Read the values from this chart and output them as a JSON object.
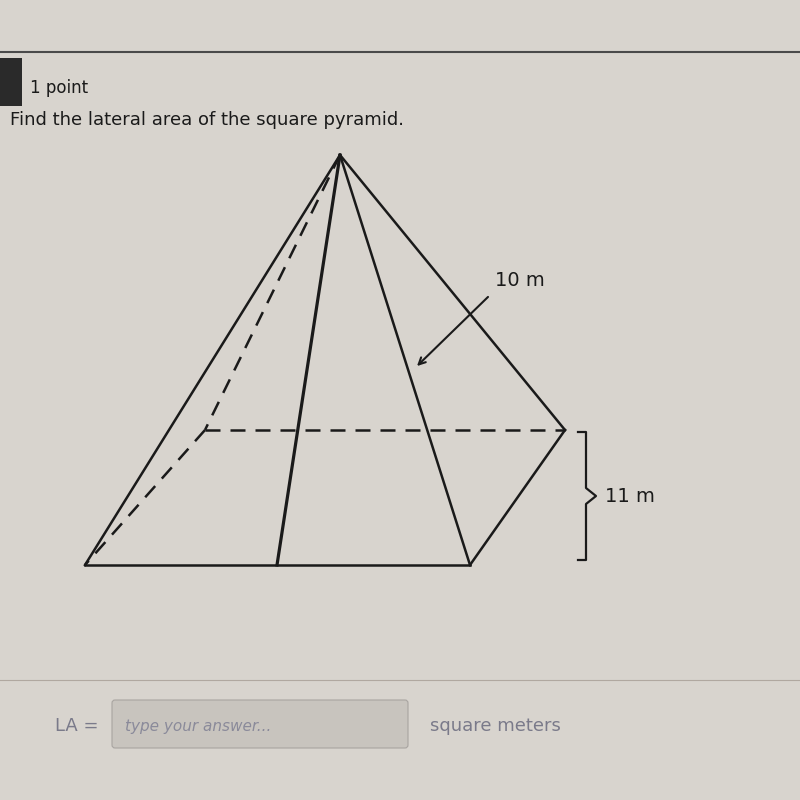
{
  "bg_color": "#d8d4ce",
  "top_bar_color": "#3a3a3a",
  "separator_color": "#5a5a5a",
  "point_text": "1 point",
  "question_text": "Find the lateral area of the square pyramid.",
  "label_10m": "10 m",
  "label_11m": "11 m",
  "la_label": "LA =",
  "placeholder_text": "type your answer...",
  "units_text": "square meters",
  "line_color": "#1a1a1a",
  "dashed_color": "#1a1a1a",
  "text_color": "#1a1a1a",
  "gray_text_color": "#8a8a9a",
  "input_box_bg": "#ccc9c3"
}
